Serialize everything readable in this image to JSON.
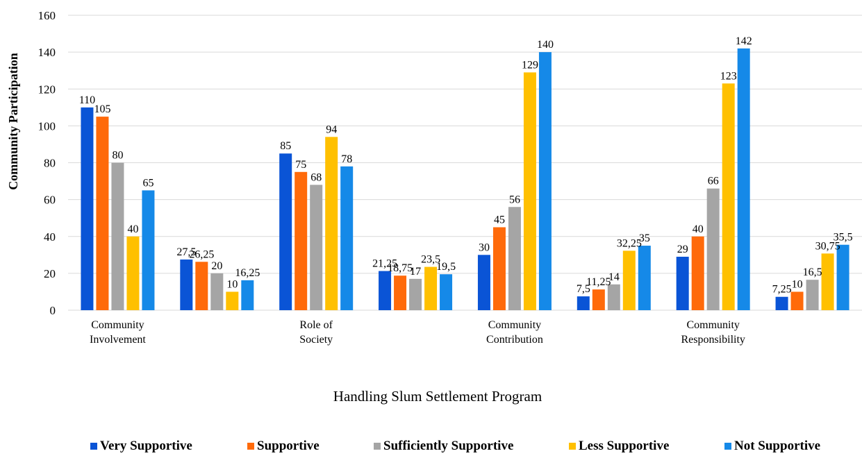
{
  "chart_data": {
    "type": "bar",
    "title": "",
    "xlabel": "Handling Slum Settlement Program",
    "ylabel": "Community Participation",
    "ylim": [
      0,
      160
    ],
    "yticks": [
      0,
      20,
      40,
      60,
      80,
      100,
      120,
      140,
      160
    ],
    "grid": true,
    "legend_position": "bottom",
    "categories": [
      "Community Involvement",
      "",
      "Role of Society",
      "",
      "Community Contribution",
      "",
      "Community Responsibility",
      ""
    ],
    "series": [
      {
        "name": "Very Supportive",
        "color": "#0A54D6",
        "values": [
          110,
          27.5,
          85,
          21.25,
          30,
          7.5,
          29,
          7.25
        ],
        "labels": [
          "110",
          "27,5",
          "85",
          "21,25",
          "30",
          "7,5",
          "29",
          "7,25"
        ]
      },
      {
        "name": "Supportive",
        "color": "#FF6A0A",
        "values": [
          105,
          26.25,
          75,
          18.75,
          45,
          11.25,
          40,
          10
        ],
        "labels": [
          "105",
          "26,25",
          "75",
          "18,75",
          "45",
          "11,25",
          "40",
          "10"
        ]
      },
      {
        "name": "Sufficiently Supportive",
        "color": "#A5A5A5",
        "values": [
          80,
          20,
          68,
          17,
          56,
          14,
          66,
          16.5
        ],
        "labels": [
          "80",
          "20",
          "68",
          "17",
          "56",
          "14",
          "66",
          "16,5"
        ]
      },
      {
        "name": "Less Supportive",
        "color": "#FFC000",
        "values": [
          40,
          10,
          94,
          23.5,
          129,
          32.25,
          123,
          30.75
        ],
        "labels": [
          "40",
          "10",
          "94",
          "23,5",
          "129",
          "32,25",
          "123",
          "30,75"
        ]
      },
      {
        "name": "Not Supportive",
        "color": "#1589E8",
        "values": [
          65,
          16.25,
          78,
          19.5,
          140,
          35,
          142,
          35.5
        ],
        "labels": [
          "65",
          "16,25",
          "78",
          "19,5",
          "140",
          "35",
          "142",
          "35,5"
        ]
      }
    ]
  }
}
